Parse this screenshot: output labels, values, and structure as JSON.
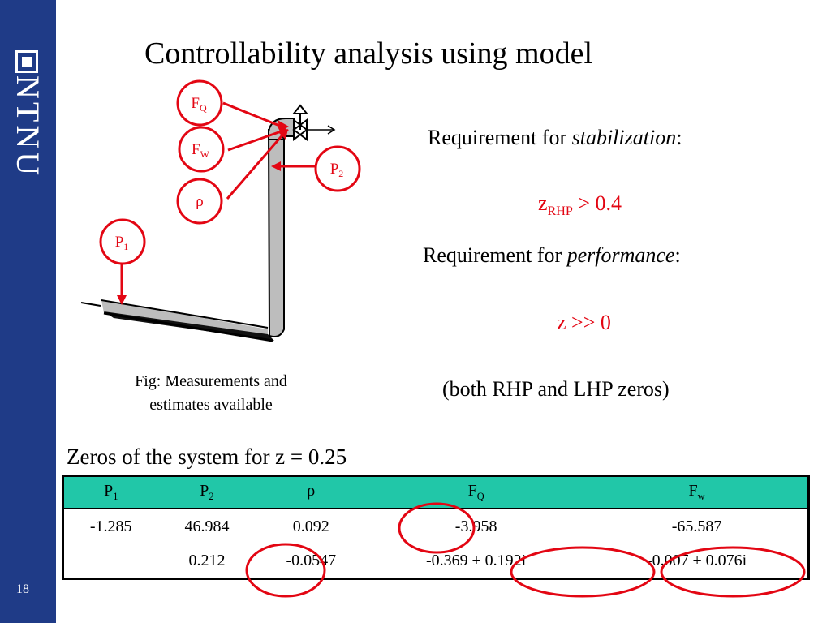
{
  "sidebar": {
    "logo_text": "NTNU",
    "page_number": "18"
  },
  "title": "Controllability analysis using model",
  "requirements": {
    "stabilization_prefix": "Requirement for ",
    "stabilization_emph": "stabilization",
    "stabilization_suffix": ":",
    "stabilization_z": "z",
    "stabilization_sub": "RHP",
    "stabilization_cond": " > 0.4",
    "performance_prefix": "Requirement for ",
    "performance_emph": "performance",
    "performance_suffix": ":",
    "performance_cond": "z >> 0",
    "note": "(both RHP and LHP zeros)"
  },
  "diagram": {
    "labels": {
      "fq": "F",
      "fq_sub": "Q",
      "fw": "F",
      "fw_sub": "W",
      "rho": "ρ",
      "p1": "P",
      "p1_sub": "1",
      "p2": "P",
      "p2_sub": "2"
    },
    "caption": "Fig: Measurements and estimates available"
  },
  "zeros": {
    "title": "Zeros of the system for z = 0.25",
    "headers": [
      {
        "main": "P",
        "sub": "1"
      },
      {
        "main": "P",
        "sub": "2"
      },
      {
        "main": "ρ",
        "sub": ""
      },
      {
        "main": "F",
        "sub": "Q"
      },
      {
        "main": "F",
        "sub": "w"
      }
    ],
    "rows": [
      [
        "-1.285",
        "46.984",
        "0.092",
        "-3.958",
        "-65.587"
      ],
      [
        "",
        "0.212",
        "-0.0547",
        "-0.369 ± 0.192i",
        "-0.007 ± 0.076i"
      ]
    ]
  },
  "colors": {
    "sidebar": "#1f3b87",
    "accent_red": "#e30613",
    "table_header": "#21c7a8"
  }
}
